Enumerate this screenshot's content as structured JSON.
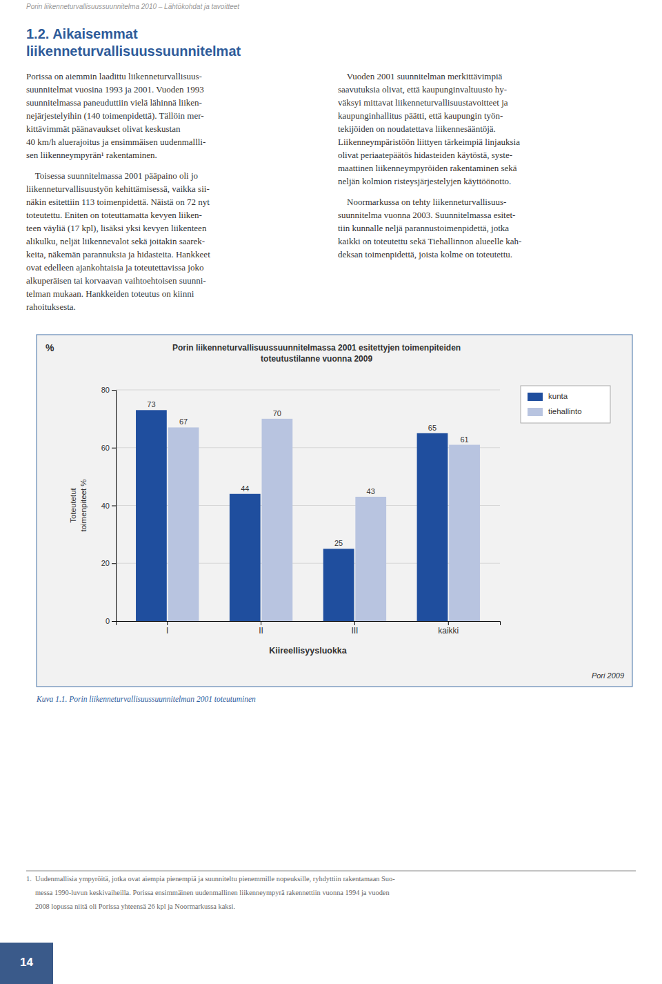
{
  "page_header": "Porin liikenneturvallisuussuunnitelma 2010 – Lähtökohdat ja tavoitteet",
  "section_title": [
    "1.2. Aikaisemmat",
    "liikenneturvallisuussuunnitelmat"
  ],
  "left_column": [
    [
      "Porissa on aiemmin laadittu liikenneturvallisuus-",
      "suunnitelmat vuosina 1993 ja 2001. Vuoden 1993",
      "suunnitelmassa paneuduttiin vielä lähinnä liiken-",
      "nejärjestelyihin (140 toimenpidettä). Tällöin mer-",
      "kittävimmät päänavaukset olivat keskustan",
      "40 km/h aluerajoitus ja ensimmäisen uudenmallli-",
      "sen liikenneympyrän¹ rakentaminen."
    ],
    [
      "    Toisessa suunnitelmassa 2001 pääpaino oli jo",
      "liikenneturvallisuustyön kehittämisessä, vaikka sii-",
      "näkin esitettiin 113 toimenpidettä. Näistä on 72 nyt",
      "toteutettu. Eniten on toteuttamatta kevyen liiken-",
      "teen väyliä (17 kpl), lisäksi yksi kevyen liikenteen",
      "alikulku, neljät liikennevalot sekä joitakin saarek-",
      "keita, näkemän parannuksia ja hidasteita. Hankkeet",
      "ovat edelleen ajankohtaisia ja toteutettavissa joko",
      "alkuperäisen tai korvaavan vaihtoehtoisen suunni-",
      "telman mukaan. Hankkeiden toteutus on kiinni",
      "rahoituksesta."
    ]
  ],
  "right_column": [
    [
      "    Vuoden 2001 suunnitelman merkittävimpiä",
      "saavutuksia olivat, että kaupunginvaltuusto hy-",
      "väksyi mittavat liikenneturvallisuustavoitteet ja",
      "kaupunginhallitus päätti, että kaupungin työn-",
      "tekijöiden on noudatettava liikennesääntöjä.",
      "Liikenneympäristöön liittyen tärkeimpiä linjauksia",
      "olivat periaatepäätös hidasteiden käytöstä, syste-",
      "maattinen liikenneympyröiden rakentaminen sekä",
      "neljän kolmion risteysjärjestelyjen käyttöönotto."
    ],
    [
      "    Noormarkussa on tehty liikenneturvallisuus-",
      "suunnitelma vuonna 2003. Suunnitelmassa esitet-",
      "tiin kunnalle neljä parannustoimenpidettä, jotka",
      "kaikki on toteutettu sekä Tiehallinnon alueelle kah-",
      "deksan toimenpidettä, joista kolme on toteutettu."
    ]
  ],
  "caption": "Kuva 1.1. Porin liikenneturvallisuussuunnitelman 2001 toteutuminen",
  "footnote": [
    "1.  Uudenmallisia ympyröitä, jotka ovat aiempia pienempiä ja suunniteltu pienemmille nopeuksille, ryhdyttiin rakentamaan Suo-",
    "     messa 1990-luvun keskivaiheilla. Porissa ensimmäinen uudenmallinen liikenneympyrä rakennettiin vuonna 1994 ja vuoden",
    "     2008 lopussa niitä oli Porissa yhteensä 26 kpl ja Noormarkussa kaksi."
  ],
  "page_number": "14",
  "chart_data": {
    "type": "bar",
    "title": [
      "Porin liikenneturvallisuussuunnitelmassa 2001 esitettyjen toimenpiteiden",
      "toteutustilanne vuonna 2009"
    ],
    "ylabel": [
      "Toteutetut",
      "toimenpiteet %"
    ],
    "xlabel": "Kiireellisyysluokka",
    "annotations": [
      "%",
      "Pori 2009"
    ],
    "categories": [
      "I",
      "II",
      "III",
      "kaikki"
    ],
    "series": [
      {
        "name": "kunta",
        "color": "#1F4E9E",
        "values": [
          73,
          44,
          25,
          65
        ]
      },
      {
        "name": "tiehallinto",
        "color": "#B8C4E0",
        "values": [
          67,
          70,
          43,
          61
        ]
      }
    ],
    "ylim": [
      0,
      80
    ],
    "yticks": [
      0,
      20,
      40,
      60,
      80
    ],
    "grid": true,
    "legend": "right",
    "data_labels": true
  }
}
